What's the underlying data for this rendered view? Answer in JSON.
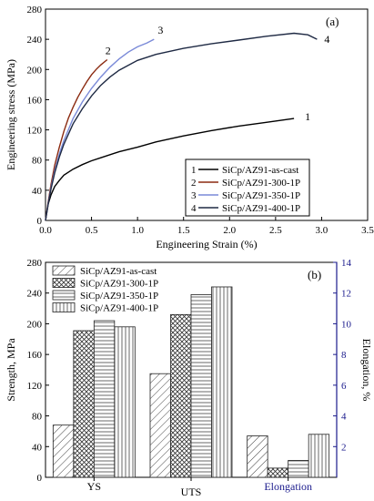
{
  "chart_data": [
    {
      "type": "line",
      "panel_label": "(a)",
      "xlabel": "Engineering Strain (%)",
      "ylabel": "Engineering stress (MPa)",
      "xlim": [
        0.0,
        3.5
      ],
      "ylim": [
        0,
        280
      ],
      "xticks": [
        "0.0",
        "0.5",
        "1.0",
        "1.5",
        "2.0",
        "2.5",
        "3.0",
        "3.5"
      ],
      "yticks": [
        "0",
        "40",
        "80",
        "120",
        "160",
        "200",
        "240",
        "280"
      ],
      "grid": false,
      "legend_position": "bottom-right",
      "series": [
        {
          "name": "SiCp/AZ91-as-cast",
          "marker": "1",
          "color": "#000000",
          "x": [
            0,
            0.03,
            0.06,
            0.1,
            0.15,
            0.2,
            0.3,
            0.4,
            0.5,
            0.6,
            0.8,
            1.0,
            1.2,
            1.5,
            1.8,
            2.1,
            2.4,
            2.7
          ],
          "y": [
            0,
            22,
            34,
            45,
            53,
            60,
            68,
            74,
            79,
            83,
            91,
            97,
            104,
            112,
            119,
            125,
            130,
            135
          ]
        },
        {
          "name": "SiCp/AZ91-300-1P",
          "marker": "2",
          "color": "#8b2a10",
          "x": [
            0,
            0.03,
            0.06,
            0.1,
            0.15,
            0.2,
            0.25,
            0.3,
            0.35,
            0.4,
            0.45,
            0.5,
            0.55,
            0.6,
            0.67
          ],
          "y": [
            0,
            25,
            48,
            73,
            97,
            118,
            136,
            150,
            163,
            174,
            184,
            193,
            200,
            206,
            213
          ]
        },
        {
          "name": "SiCp/AZ91-350-1P",
          "marker": "3",
          "color": "#7a8ad8",
          "x": [
            0,
            0.03,
            0.06,
            0.1,
            0.15,
            0.2,
            0.3,
            0.4,
            0.5,
            0.6,
            0.7,
            0.8,
            0.9,
            1.0,
            1.1,
            1.18
          ],
          "y": [
            0,
            23,
            44,
            66,
            88,
            106,
            135,
            157,
            175,
            190,
            203,
            214,
            223,
            230,
            235,
            240
          ]
        },
        {
          "name": "SiCp/AZ91-400-1P",
          "marker": "4",
          "color": "#1f2a44",
          "x": [
            0,
            0.03,
            0.06,
            0.1,
            0.15,
            0.2,
            0.3,
            0.4,
            0.5,
            0.6,
            0.7,
            0.8,
            1.0,
            1.2,
            1.5,
            1.8,
            2.1,
            2.4,
            2.7,
            2.85,
            2.95
          ],
          "y": [
            0,
            22,
            42,
            63,
            84,
            101,
            128,
            148,
            165,
            179,
            190,
            199,
            212,
            220,
            228,
            234,
            239,
            244,
            248,
            246,
            240
          ]
        }
      ]
    },
    {
      "type": "bar",
      "panel_label": "(b)",
      "categories": [
        "YS",
        "UTS",
        "Elongation"
      ],
      "ylabel": "Strength, MPa",
      "ylabel_right": "Elongation, %",
      "ylim": [
        0,
        280
      ],
      "ylim_right": [
        0,
        14
      ],
      "yticks": [
        "0",
        "40",
        "80",
        "120",
        "160",
        "200",
        "240",
        "280"
      ],
      "yticks_right": [
        "2",
        "4",
        "6",
        "8",
        "10",
        "12",
        "14"
      ],
      "grid": false,
      "legend_position": "top-left",
      "series": [
        {
          "name": "SiCp/AZ91-as-cast",
          "pattern": "diagonal",
          "values": [
            68,
            135,
            2.7
          ]
        },
        {
          "name": "SiCp/AZ91-300-1P",
          "pattern": "crosshatch",
          "values": [
            191,
            212,
            0.6
          ]
        },
        {
          "name": "SiCp/AZ91-350-1P",
          "pattern": "horizontal",
          "values": [
            204,
            238,
            1.1
          ]
        },
        {
          "name": "SiCp/AZ91-400-1P",
          "pattern": "vertical",
          "values": [
            196,
            248,
            2.8
          ]
        }
      ],
      "colors": {
        "axis_left": "#000000",
        "axis_right": "#1a1a8c",
        "elongation_label": "#1a1a8c"
      }
    }
  ]
}
